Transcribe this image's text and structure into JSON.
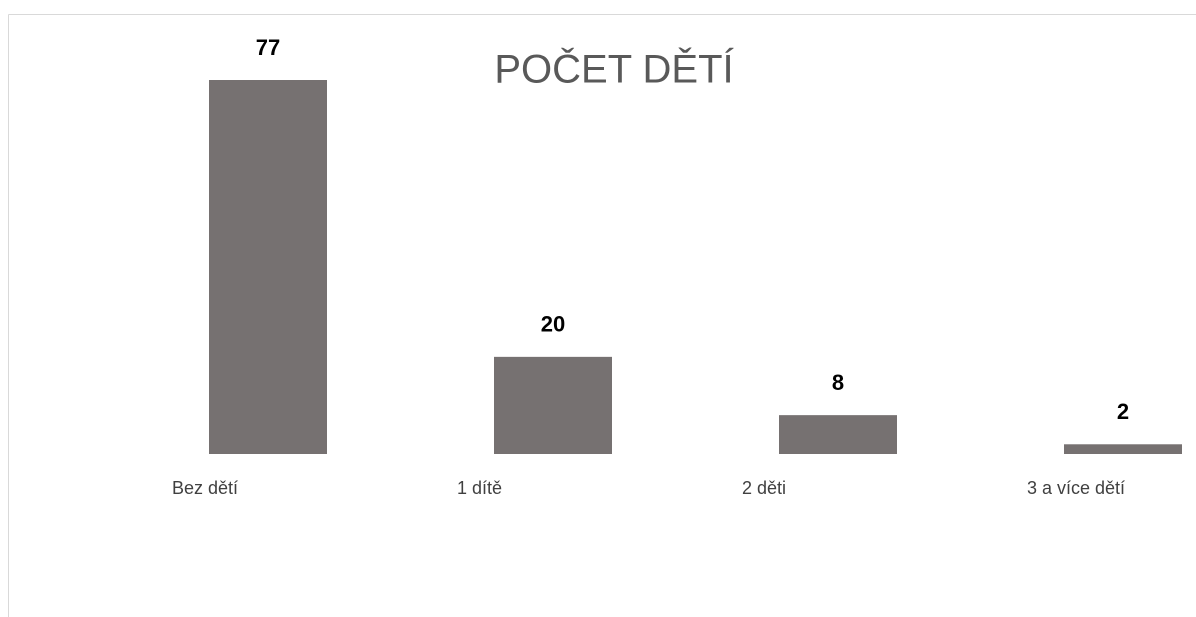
{
  "chart_data": {
    "type": "bar",
    "title": "POČET DĚTÍ",
    "categories": [
      "Bez dětí",
      "1 dítě",
      "2 děti",
      "3 a více dětí"
    ],
    "values": [
      77,
      20,
      8,
      2
    ],
    "color": "#767171"
  }
}
